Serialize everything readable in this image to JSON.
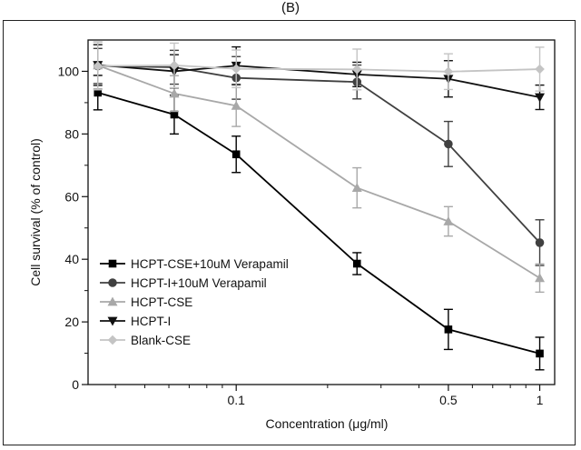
{
  "panel_label": "(B)",
  "chart_data": {
    "type": "line",
    "title": "",
    "xlabel": "Concentration (μg/ml)",
    "ylabel": "Cell survival (% of control)",
    "x_scale": "log",
    "xlim": [
      0.0325,
      1.12
    ],
    "ylim": [
      0,
      110
    ],
    "x_ticks": [
      {
        "value": 0.1,
        "label": "0.1"
      },
      {
        "value": 0.5,
        "label": "0.5"
      },
      {
        "value": 1,
        "label": "1"
      }
    ],
    "y_ticks": [
      {
        "value": 0,
        "label": "0"
      },
      {
        "value": 20,
        "label": "20"
      },
      {
        "value": 40,
        "label": "40"
      },
      {
        "value": 60,
        "label": "60"
      },
      {
        "value": 80,
        "label": "80"
      },
      {
        "value": 100,
        "label": "100"
      }
    ],
    "x": [
      0.035,
      0.0625,
      0.1,
      0.25,
      0.5,
      1
    ],
    "grid": false,
    "legend_position": "bottom-left",
    "series": [
      {
        "name": "HCPT-CSE+10uM Verapamil",
        "color": "#000000",
        "marker": "square",
        "values": [
          93.2,
          86.2,
          73.5,
          38.6,
          17.6,
          9.9
        ],
        "errors": [
          5.5,
          6.2,
          5.8,
          3.5,
          6.4,
          5.2
        ]
      },
      {
        "name": "HCPT-I+10uM Verapamil",
        "color": "#404040",
        "marker": "circle",
        "values": [
          101.7,
          101.3,
          97.9,
          96.6,
          76.8,
          45.3
        ],
        "errors": [
          5.6,
          5.4,
          6.8,
          5.4,
          7.2,
          7.3
        ]
      },
      {
        "name": "HCPT-CSE",
        "color": "#a8a8a8",
        "marker": "triangle-up",
        "values": [
          101.9,
          92.9,
          89.0,
          62.8,
          52.1,
          34.0
        ],
        "errors": [
          7.5,
          5.7,
          6.6,
          6.4,
          4.7,
          4.5
        ]
      },
      {
        "name": "HCPT-I",
        "color": "#111111",
        "marker": "triangle-down",
        "values": [
          102.0,
          100.0,
          101.8,
          99.0,
          97.6,
          91.7
        ],
        "errors": [
          6.5,
          5.3,
          6.0,
          3.9,
          5.8,
          3.9
        ]
      },
      {
        "name": "Blank-CSE",
        "color": "#c4c4c4",
        "marker": "diamond",
        "values": [
          101.7,
          101.9,
          100.8,
          100.6,
          99.9,
          100.7
        ],
        "errors": [
          7.6,
          7.1,
          6.0,
          6.5,
          5.7,
          7.0
        ]
      }
    ]
  }
}
